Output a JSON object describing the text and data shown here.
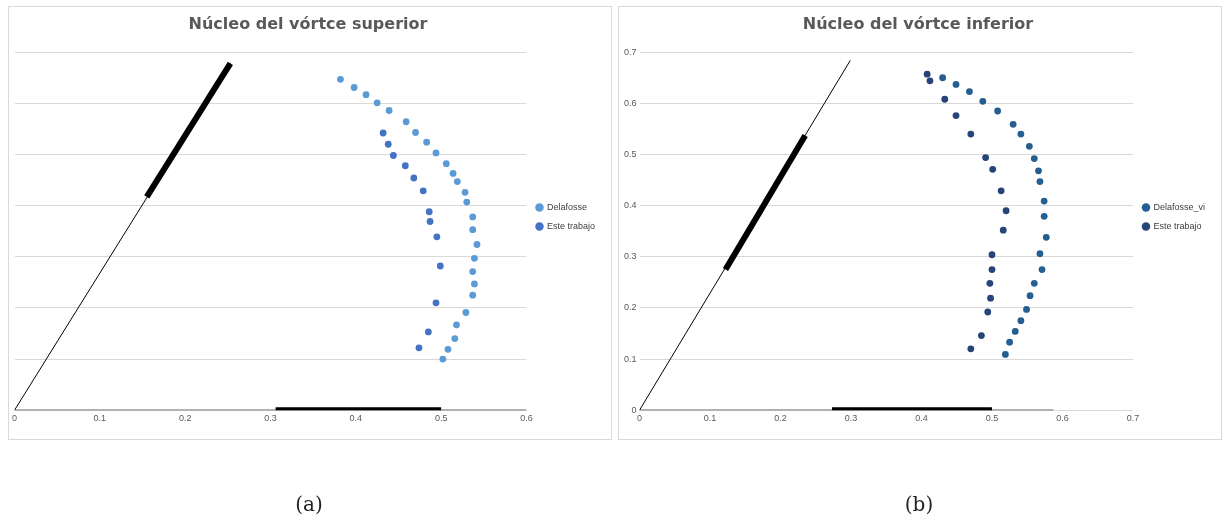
{
  "chart_data": [
    {
      "type": "scatter",
      "title": "Núcleo del vórtce superior",
      "xlim": [
        0,
        0.6
      ],
      "xticks": [
        0,
        0.1,
        0.2,
        0.3,
        0.4,
        0.5,
        0.6
      ],
      "ylim": [
        0,
        0.7
      ],
      "yticks": [
        {
          "value": 0,
          "label": null
        },
        {
          "value": 0.1,
          "label": null
        },
        {
          "value": 0.2,
          "label": null
        },
        {
          "value": 0.3,
          "label": null
        },
        {
          "value": 0.4,
          "label": null
        },
        {
          "value": 0.5,
          "label": null
        },
        {
          "value": 0.6,
          "label": null
        },
        {
          "value": 0.7,
          "label": null
        }
      ],
      "tick_labels": "x",
      "grid": "y",
      "legend": "right",
      "marker": "circle",
      "annotations": [
        "(a)"
      ],
      "series": [
        {
          "name": "Delafosse",
          "color": "#5b9bd5",
          "x": [
            0.382,
            0.398,
            0.412,
            0.425,
            0.439,
            0.459,
            0.47,
            0.483,
            0.494,
            0.506,
            0.514,
            0.519,
            0.528,
            0.53,
            0.537,
            0.537,
            0.542,
            0.539,
            0.537,
            0.539,
            0.537,
            0.529,
            0.518,
            0.516,
            0.508,
            0.502
          ],
          "values": [
            0.647,
            0.631,
            0.617,
            0.601,
            0.586,
            0.564,
            0.543,
            0.524,
            0.503,
            0.482,
            0.463,
            0.447,
            0.426,
            0.407,
            0.378,
            0.353,
            0.324,
            0.297,
            0.271,
            0.247,
            0.225,
            0.191,
            0.167,
            0.14,
            0.119,
            0.1
          ]
        },
        {
          "name": "Este trabajo",
          "color": "#4472c4",
          "x": [
            0.432,
            0.438,
            0.444,
            0.458,
            0.468,
            0.479,
            0.486,
            0.487,
            0.495,
            0.499,
            0.494,
            0.485,
            0.474
          ],
          "values": [
            0.542,
            0.52,
            0.498,
            0.478,
            0.454,
            0.429,
            0.388,
            0.369,
            0.339,
            0.282,
            0.21,
            0.153,
            0.122
          ]
        },
        {
          "type": "line",
          "marker": "none",
          "color": "#000000",
          "x": [
            0,
            0.253
          ],
          "values": [
            0,
            0.678
          ]
        },
        {
          "type": "line",
          "marker": "none",
          "color": "#000000",
          "x": [
            0.155,
            0.253
          ],
          "values": [
            0.417,
            0.678
          ]
        },
        {
          "type": "line",
          "marker": "none",
          "color": "#000000",
          "x": [
            0,
            0.6
          ],
          "values": [
            0,
            0
          ]
        },
        {
          "type": "line",
          "marker": "none",
          "color": "#000000",
          "x": [
            0.306,
            0.5
          ],
          "values": [
            0,
            0
          ]
        }
      ]
    },
    {
      "type": "scatter",
      "title": "Núcleo del vórtce inferior",
      "xlim": [
        0,
        0.7
      ],
      "xticks": [
        0,
        0.1,
        0.2,
        0.3,
        0.4,
        0.5,
        0.6,
        0.7
      ],
      "ylim": [
        0,
        0.7
      ],
      "yticks": [
        0,
        0.1,
        0.2,
        0.3,
        0.4,
        0.5,
        0.6,
        0.7
      ],
      "grid": "y",
      "legend": "right",
      "marker": "circle",
      "annotations": [
        "(b)"
      ],
      "series": [
        {
          "name": "Delafosse_vi",
          "color": "#255e91",
          "x": [
            0.43,
            0.449,
            0.468,
            0.487,
            0.508,
            0.53,
            0.541,
            0.553,
            0.56,
            0.566,
            0.568,
            0.574,
            0.574,
            0.577,
            0.568,
            0.571,
            0.56,
            0.554,
            0.549,
            0.541,
            0.533,
            0.525,
            0.519
          ],
          "values": [
            0.65,
            0.637,
            0.623,
            0.604,
            0.585,
            0.559,
            0.54,
            0.516,
            0.492,
            0.468,
            0.447,
            0.409,
            0.379,
            0.338,
            0.306,
            0.275,
            0.248,
            0.224,
            0.197,
            0.175,
            0.154,
            0.133,
            0.109
          ]
        },
        {
          "name": "Este trabajo",
          "color": "#264478",
          "x": [
            0.408,
            0.412,
            0.433,
            0.449,
            0.47,
            0.491,
            0.501,
            0.513,
            0.52,
            0.516,
            0.5,
            0.5,
            0.497,
            0.498,
            0.494,
            0.485,
            0.47
          ],
          "values": [
            0.657,
            0.644,
            0.608,
            0.576,
            0.54,
            0.494,
            0.471,
            0.429,
            0.39,
            0.352,
            0.304,
            0.275,
            0.248,
            0.219,
            0.192,
            0.146,
            0.12
          ]
        },
        {
          "type": "line",
          "marker": "none",
          "color": "#000000",
          "x": [
            0,
            0.299
          ],
          "values": [
            0,
            0.684
          ]
        },
        {
          "type": "line",
          "marker": "none",
          "color": "#000000",
          "x": [
            0.122,
            0.235
          ],
          "values": [
            0.275,
            0.537
          ]
        },
        {
          "type": "line",
          "marker": "none",
          "color": "#000000",
          "x": [
            0,
            0.587
          ],
          "values": [
            0,
            0
          ]
        },
        {
          "type": "line",
          "marker": "none",
          "color": "#000000",
          "x": [
            0.273,
            0.5
          ],
          "values": [
            0,
            0
          ]
        }
      ]
    }
  ]
}
